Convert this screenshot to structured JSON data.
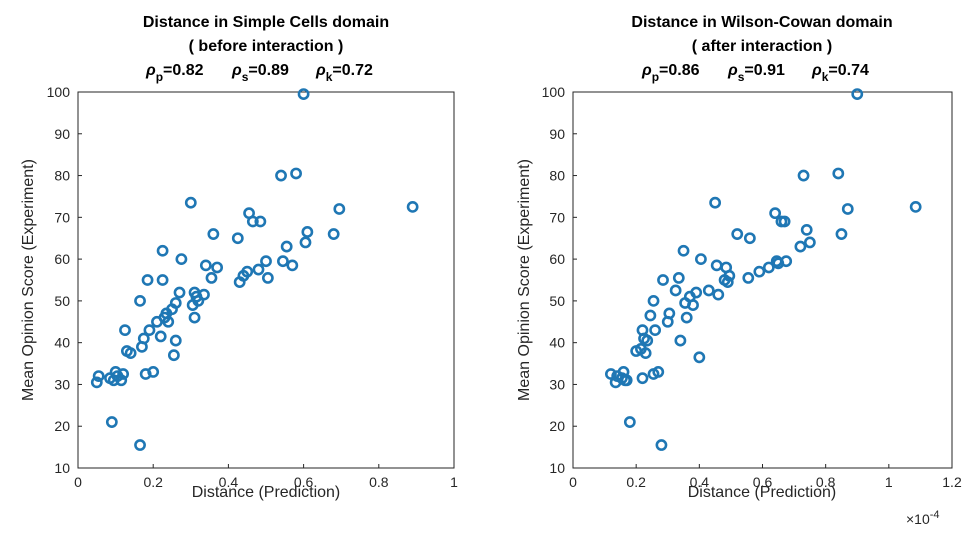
{
  "chart_data": [
    {
      "type": "scatter",
      "title": "Distance in Simple Cells domain",
      "subtitle": "( before interaction )",
      "stats": [
        {
          "symbol": "ρ",
          "sub": "p",
          "value": "=0.82"
        },
        {
          "symbol": "ρ",
          "sub": "s",
          "value": "=0.89"
        },
        {
          "symbol": "ρ",
          "sub": "k",
          "value": "=0.72"
        }
      ],
      "xlabel": "Distance (Prediction)",
      "ylabel": "Mean Opinion Score (Experiment)",
      "xlim": [
        0,
        1
      ],
      "ylim": [
        10,
        100
      ],
      "xticks": [
        0,
        0.2,
        0.4,
        0.6,
        0.8,
        1
      ],
      "xtick_labels": [
        "0",
        "0.2",
        "0.4",
        "0.6",
        "0.8",
        "1"
      ],
      "yticks": [
        10,
        20,
        30,
        40,
        50,
        60,
        70,
        80,
        90,
        100
      ],
      "exponent_label": "",
      "color": "#1f77b4",
      "points": [
        [
          0.05,
          30.5
        ],
        [
          0.055,
          32
        ],
        [
          0.085,
          31.5
        ],
        [
          0.095,
          31
        ],
        [
          0.1,
          33
        ],
        [
          0.105,
          32
        ],
        [
          0.115,
          31
        ],
        [
          0.12,
          32.5
        ],
        [
          0.09,
          21
        ],
        [
          0.125,
          43
        ],
        [
          0.13,
          38
        ],
        [
          0.14,
          37.5
        ],
        [
          0.165,
          15.5
        ],
        [
          0.165,
          50
        ],
        [
          0.17,
          39
        ],
        [
          0.175,
          41
        ],
        [
          0.18,
          32.5
        ],
        [
          0.185,
          55
        ],
        [
          0.19,
          43
        ],
        [
          0.2,
          33
        ],
        [
          0.21,
          45
        ],
        [
          0.22,
          41.5
        ],
        [
          0.225,
          62
        ],
        [
          0.225,
          55
        ],
        [
          0.23,
          46
        ],
        [
          0.235,
          47
        ],
        [
          0.24,
          45
        ],
        [
          0.25,
          48
        ],
        [
          0.255,
          37
        ],
        [
          0.26,
          40.5
        ],
        [
          0.26,
          49.5
        ],
        [
          0.27,
          52
        ],
        [
          0.275,
          60
        ],
        [
          0.3,
          73.5
        ],
        [
          0.305,
          49
        ],
        [
          0.31,
          52
        ],
        [
          0.31,
          46
        ],
        [
          0.315,
          51
        ],
        [
          0.32,
          50
        ],
        [
          0.335,
          51.5
        ],
        [
          0.34,
          58.5
        ],
        [
          0.355,
          55.5
        ],
        [
          0.36,
          66
        ],
        [
          0.37,
          58
        ],
        [
          0.425,
          65
        ],
        [
          0.43,
          54.5
        ],
        [
          0.44,
          56
        ],
        [
          0.45,
          57
        ],
        [
          0.455,
          71
        ],
        [
          0.465,
          69
        ],
        [
          0.48,
          57.5
        ],
        [
          0.485,
          69
        ],
        [
          0.5,
          59.5
        ],
        [
          0.505,
          55.5
        ],
        [
          0.54,
          80
        ],
        [
          0.545,
          59.5
        ],
        [
          0.555,
          63
        ],
        [
          0.57,
          58.5
        ],
        [
          0.58,
          80.5
        ],
        [
          0.6,
          99.5
        ],
        [
          0.605,
          64
        ],
        [
          0.61,
          66.5
        ],
        [
          0.68,
          66
        ],
        [
          0.695,
          72
        ],
        [
          0.89,
          72.5
        ]
      ]
    },
    {
      "type": "scatter",
      "title": "Distance in Wilson-Cowan domain",
      "subtitle": "( after interaction )",
      "stats": [
        {
          "symbol": "ρ",
          "sub": "p",
          "value": "=0.86"
        },
        {
          "symbol": "ρ",
          "sub": "s",
          "value": "=0.91"
        },
        {
          "symbol": "ρ",
          "sub": "k",
          "value": "=0.74"
        }
      ],
      "xlabel": "Distance (Prediction)",
      "ylabel": "Mean Opinion Score (Experiment)",
      "xlim": [
        0,
        1.2
      ],
      "ylim": [
        10,
        100
      ],
      "xticks": [
        0,
        0.2,
        0.4,
        0.6,
        0.8,
        1,
        1.2
      ],
      "xtick_labels": [
        "0",
        "0.2",
        "0.4",
        "0.6",
        "0.8",
        "1",
        "1.2"
      ],
      "yticks": [
        10,
        20,
        30,
        40,
        50,
        60,
        70,
        80,
        90,
        100
      ],
      "exponent_label": "×10^-4",
      "exponent_base": "×10",
      "exponent_power": "-4",
      "color": "#1f77b4",
      "points": [
        [
          0.12,
          32.5
        ],
        [
          0.135,
          30.5
        ],
        [
          0.14,
          32
        ],
        [
          0.155,
          31.5
        ],
        [
          0.16,
          33
        ],
        [
          0.165,
          31
        ],
        [
          0.17,
          31
        ],
        [
          0.18,
          21
        ],
        [
          0.2,
          38
        ],
        [
          0.215,
          38.5
        ],
        [
          0.22,
          31.5
        ],
        [
          0.22,
          43
        ],
        [
          0.225,
          41
        ],
        [
          0.23,
          37.5
        ],
        [
          0.235,
          40.5
        ],
        [
          0.245,
          46.5
        ],
        [
          0.255,
          32.5
        ],
        [
          0.255,
          50
        ],
        [
          0.26,
          43
        ],
        [
          0.27,
          33
        ],
        [
          0.28,
          15.5
        ],
        [
          0.285,
          55
        ],
        [
          0.3,
          45
        ],
        [
          0.305,
          47
        ],
        [
          0.325,
          52.5
        ],
        [
          0.335,
          55.5
        ],
        [
          0.34,
          40.5
        ],
        [
          0.35,
          62
        ],
        [
          0.355,
          49.5
        ],
        [
          0.36,
          46
        ],
        [
          0.37,
          51
        ],
        [
          0.38,
          49
        ],
        [
          0.39,
          52
        ],
        [
          0.4,
          36.5
        ],
        [
          0.405,
          60
        ],
        [
          0.43,
          52.5
        ],
        [
          0.45,
          73.5
        ],
        [
          0.455,
          58.5
        ],
        [
          0.46,
          51.5
        ],
        [
          0.48,
          55
        ],
        [
          0.485,
          58
        ],
        [
          0.49,
          54.5
        ],
        [
          0.495,
          56
        ],
        [
          0.52,
          66
        ],
        [
          0.555,
          55.5
        ],
        [
          0.56,
          65
        ],
        [
          0.59,
          57
        ],
        [
          0.62,
          58
        ],
        [
          0.64,
          71
        ],
        [
          0.645,
          59.5
        ],
        [
          0.65,
          59
        ],
        [
          0.66,
          69
        ],
        [
          0.67,
          69
        ],
        [
          0.675,
          59.5
        ],
        [
          0.72,
          63
        ],
        [
          0.73,
          80
        ],
        [
          0.74,
          67
        ],
        [
          0.75,
          64
        ],
        [
          0.84,
          80.5
        ],
        [
          0.85,
          66
        ],
        [
          0.87,
          72
        ],
        [
          0.9,
          99.5
        ],
        [
          1.085,
          72.5
        ]
      ]
    }
  ]
}
